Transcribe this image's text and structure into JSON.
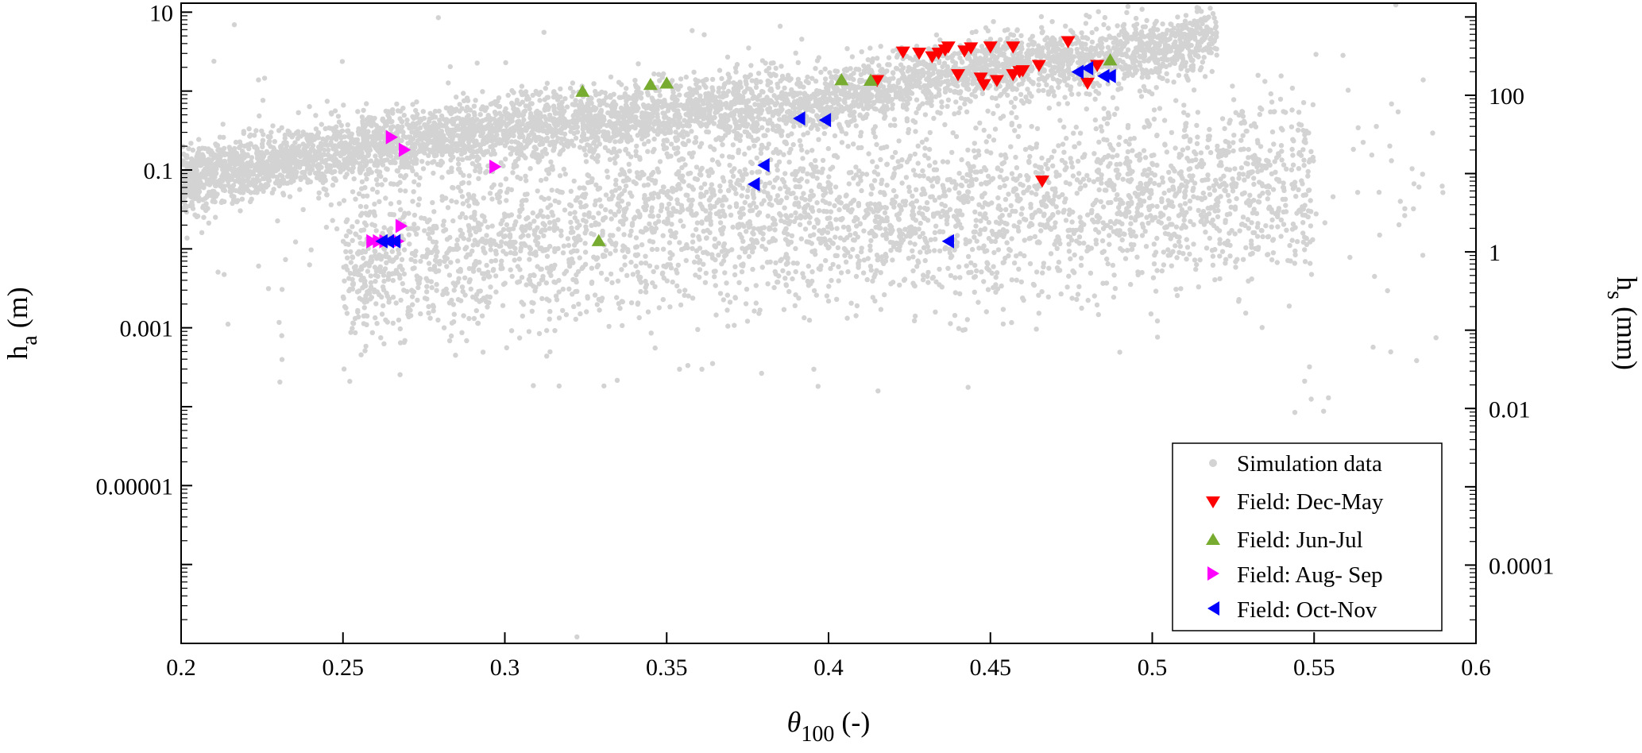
{
  "chart_data": {
    "type": "scatter",
    "title": "",
    "x_axis": {
      "label_main": "θ",
      "label_sub": "100",
      "label_suffix": " (-)",
      "range": [
        0.2,
        0.6
      ],
      "ticks": [
        0.2,
        0.25,
        0.3,
        0.35,
        0.4,
        0.45,
        0.5,
        0.55,
        0.6
      ],
      "tick_labels": [
        "0.2",
        "0.25",
        "0.3",
        "0.35",
        "0.4",
        "0.45",
        "0.5",
        "0.55",
        "0.6"
      ]
    },
    "y_axis_left": {
      "label_main": "h",
      "label_sub": "a",
      "label_suffix": " (m)",
      "scale": "log",
      "range": [
        1e-07,
        13
      ],
      "major_ticks": [
        1e-05,
        0.001,
        0.1,
        10
      ],
      "tick_labels": [
        "0.00001",
        "0.001",
        "0.1",
        "10"
      ]
    },
    "y_axis_right": {
      "label_main": "h",
      "label_sub": "s",
      "label_suffix": " (mm)",
      "scale": "log",
      "range": [
        1e-05,
        1500
      ],
      "major_ticks": [
        0.0001,
        0.01,
        1,
        100
      ],
      "tick_labels": [
        "0.0001",
        "0.01",
        "1",
        "100"
      ]
    },
    "grid": false,
    "legend": {
      "placement": "bottom-right",
      "entries": [
        {
          "label": "Simulation data",
          "marker": "dot",
          "color": "#d3d3d3"
        },
        {
          "label": "Field: Dec-May",
          "marker": "triangle-down",
          "color": "#ff0000"
        },
        {
          "label": "Field: Jun-Jul",
          "marker": "triangle-up",
          "color": "#77ac30"
        },
        {
          "label": "Field: Aug- Sep",
          "marker": "triangle-right",
          "color": "#ff00ff"
        },
        {
          "label": "Field: Oct-Nov",
          "marker": "triangle-left",
          "color": "#0000ff"
        }
      ]
    },
    "simulation_bands": [
      {
        "x": [
          0.2,
          0.25,
          0.3,
          0.35,
          0.4,
          0.45,
          0.5,
          0.52
        ],
        "y_center_log10": [
          -1.15,
          -0.75,
          -0.5,
          -0.3,
          -0.1,
          0.3,
          0.5,
          0.7
        ],
        "spread_log10": 0.38
      },
      {
        "x": [
          0.25,
          0.3,
          0.35,
          0.4,
          0.45,
          0.5,
          0.55
        ],
        "y_center_log10": [
          -2.3,
          -1.9,
          -1.65,
          -1.6,
          -1.5,
          -1.3,
          -1.2
        ],
        "spread_log10": 0.9
      }
    ],
    "series": [
      {
        "name": "Field: Dec-May",
        "marker": "triangle-down",
        "color": "#ff0000",
        "points": [
          [
            0.415,
            1.35
          ],
          [
            0.423,
            3.1
          ],
          [
            0.428,
            3.0
          ],
          [
            0.432,
            2.7
          ],
          [
            0.434,
            3.0
          ],
          [
            0.436,
            3.3
          ],
          [
            0.437,
            3.6
          ],
          [
            0.44,
            1.6
          ],
          [
            0.442,
            3.2
          ],
          [
            0.444,
            3.5
          ],
          [
            0.447,
            1.45
          ],
          [
            0.448,
            1.2
          ],
          [
            0.45,
            3.6
          ],
          [
            0.452,
            1.35
          ],
          [
            0.457,
            1.6
          ],
          [
            0.457,
            3.6
          ],
          [
            0.459,
            1.75
          ],
          [
            0.46,
            1.8
          ],
          [
            0.465,
            2.1
          ],
          [
            0.466,
            0.072
          ],
          [
            0.474,
            4.2
          ],
          [
            0.48,
            1.25
          ],
          [
            0.483,
            2.1
          ]
        ]
      },
      {
        "name": "Field: Jun-Jul",
        "marker": "triangle-up",
        "color": "#77ac30",
        "points": [
          [
            0.324,
            1.0
          ],
          [
            0.329,
            0.0128
          ],
          [
            0.345,
            1.22
          ],
          [
            0.35,
            1.27
          ],
          [
            0.404,
            1.4
          ],
          [
            0.413,
            1.38
          ],
          [
            0.487,
            2.5
          ]
        ]
      },
      {
        "name": "Field: Aug- Sep",
        "marker": "triangle-right",
        "color": "#ff00ff",
        "points": [
          [
            0.259,
            0.0125
          ],
          [
            0.261,
            0.0125
          ],
          [
            0.263,
            0.0125
          ],
          [
            0.265,
            0.26
          ],
          [
            0.267,
            0.0125
          ],
          [
            0.268,
            0.0195
          ],
          [
            0.269,
            0.18
          ],
          [
            0.297,
            0.11
          ]
        ]
      },
      {
        "name": "Field: Oct-Nov",
        "marker": "triangle-left",
        "color": "#0000ff",
        "points": [
          [
            0.262,
            0.0125
          ],
          [
            0.264,
            0.0125
          ],
          [
            0.266,
            0.0125
          ],
          [
            0.377,
            0.066
          ],
          [
            0.38,
            0.115
          ],
          [
            0.391,
            0.45
          ],
          [
            0.399,
            0.43
          ],
          [
            0.437,
            0.0125
          ],
          [
            0.477,
            1.75
          ],
          [
            0.48,
            1.95
          ],
          [
            0.485,
            1.55
          ],
          [
            0.487,
            1.55
          ]
        ]
      }
    ]
  }
}
